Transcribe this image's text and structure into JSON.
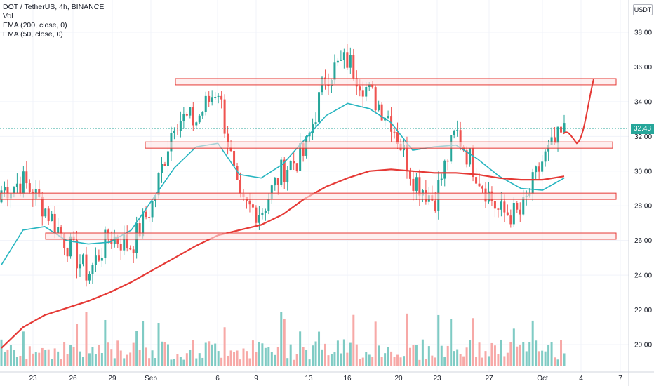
{
  "legend": {
    "symbol": "DOT / TetherUS, 4h, BINANCE",
    "vol": "Vol",
    "ema200": "EMA (200, close, 0)",
    "ema50": "EMA (50, close, 0)"
  },
  "currency": "USDT",
  "last_price": "32.43",
  "colors": {
    "up": "#26a69a",
    "down": "#ef5350",
    "up_volume": "#7fcbc4",
    "down_volume": "#f7a9a7",
    "ema200": "#e53935",
    "ema50": "#26b5c0",
    "zone_border": "#e53935",
    "zone_fill": "#fde4e4",
    "projection": "#e53935"
  },
  "chart_data": {
    "type": "candlestick",
    "y_axis": {
      "min": 19.0,
      "max": 39.0,
      "ticks": [
        "38.00",
        "36.00",
        "34.00",
        "32.00",
        "30.00",
        "28.00",
        "26.00",
        "24.00",
        "22.00",
        "20.00"
      ]
    },
    "x_axis": {
      "ticks": [
        "23",
        "26",
        "29",
        "Sep",
        "6",
        "9",
        "13",
        "16",
        "20",
        "23",
        "27",
        "Oct",
        "4",
        "7"
      ]
    },
    "horizontal_zones": [
      {
        "low": 35.05,
        "high": 35.25
      },
      {
        "low": 31.4,
        "high": 31.6
      },
      {
        "low": 28.45,
        "high": 28.65
      },
      {
        "low": 26.15,
        "high": 26.35
      }
    ],
    "ohlc_anchors": [
      [
        28.2,
        29.6
      ],
      [
        29.8,
        29.0
      ],
      [
        27.2,
        28.6
      ],
      [
        25.2,
        26.6
      ],
      [
        24.2,
        23.9
      ],
      [
        26.2,
        26.4
      ],
      [
        25.8,
        25.6
      ],
      [
        26.8,
        29.6
      ],
      [
        32.5,
        33.6
      ],
      [
        31.8,
        34.0
      ],
      [
        34.8,
        35.0
      ],
      [
        29.8,
        26.2
      ],
      [
        27.4,
        28.0
      ],
      [
        31.6,
        28.6
      ],
      [
        30.4,
        31.6
      ],
      [
        34.0,
        37.2
      ],
      [
        36.8,
        36.0
      ],
      [
        35.2,
        33.8
      ],
      [
        34.2,
        31.8
      ],
      [
        32.2,
        27.2
      ],
      [
        28.8,
        27.8
      ],
      [
        33.0,
        31.6
      ],
      [
        30.4,
        29.2
      ],
      [
        28.2,
        27.0
      ],
      [
        26.6,
        28.4
      ],
      [
        29.4,
        31.8
      ],
      [
        32.1,
        32.4
      ]
    ],
    "ema50_anchors": [
      [
        24.6,
        26.6,
        26.8,
        26.0,
        25.8,
        25.9,
        26.6,
        28.4,
        30.2,
        31.4,
        31.6,
        29.8,
        29.6,
        30.4,
        31.8,
        33.2,
        33.9,
        33.6,
        32.8,
        31.2,
        31.4,
        31.5,
        30.7,
        29.7,
        29.0,
        28.9,
        29.6
      ]
    ],
    "ema200_anchors": [
      19.8,
      21.0,
      21.7,
      22.1,
      22.5,
      23.0,
      23.6,
      24.3,
      25.0,
      25.7,
      26.3,
      26.6,
      26.9,
      27.5,
      28.4,
      29.1,
      29.6,
      30.0,
      30.1,
      30.0,
      29.9,
      29.9,
      29.8,
      29.6,
      29.5,
      29.5,
      29.7
    ],
    "projection_path": [
      [
        32.15,
        32.0
      ],
      [
        32.45,
        32.0
      ],
      [
        31.6,
        34.0
      ],
      [
        35.2,
        35.3
      ]
    ]
  }
}
